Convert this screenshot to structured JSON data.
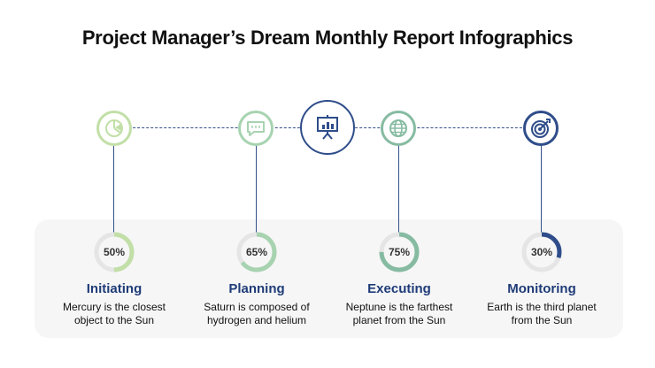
{
  "title": "Project Manager’s Dream Monthly Report Infographics",
  "colors": {
    "light_green": "#c2dfa7",
    "mint": "#a7d3b0",
    "teal": "#86bba2",
    "navy": "#2f4d8a",
    "track": "#e5e5e5"
  },
  "center": {
    "icon": "presentation-chart-icon"
  },
  "steps": [
    {
      "name": "Initiating",
      "percent": 50,
      "percent_label": "50%",
      "description_line1": "Mercury is the closest",
      "description_line2": "object to the Sun",
      "icon": "pie-chart-icon",
      "color": "#c2dfa7"
    },
    {
      "name": "Planning",
      "percent": 65,
      "percent_label": "65%",
      "description_line1": "Saturn is composed of",
      "description_line2": "hydrogen and helium",
      "icon": "chat-bubble-icon",
      "color": "#a7d3b0"
    },
    {
      "name": "Executing",
      "percent": 75,
      "percent_label": "75%",
      "description_line1": "Neptune is the farthest",
      "description_line2": "planet from the Sun",
      "icon": "globe-icon",
      "color": "#86bba2"
    },
    {
      "name": "Monitoring",
      "percent": 30,
      "percent_label": "30%",
      "description_line1": "Earth is the third planet",
      "description_line2": "from the Sun",
      "icon": "target-icon",
      "color": "#2f4d8a"
    }
  ]
}
